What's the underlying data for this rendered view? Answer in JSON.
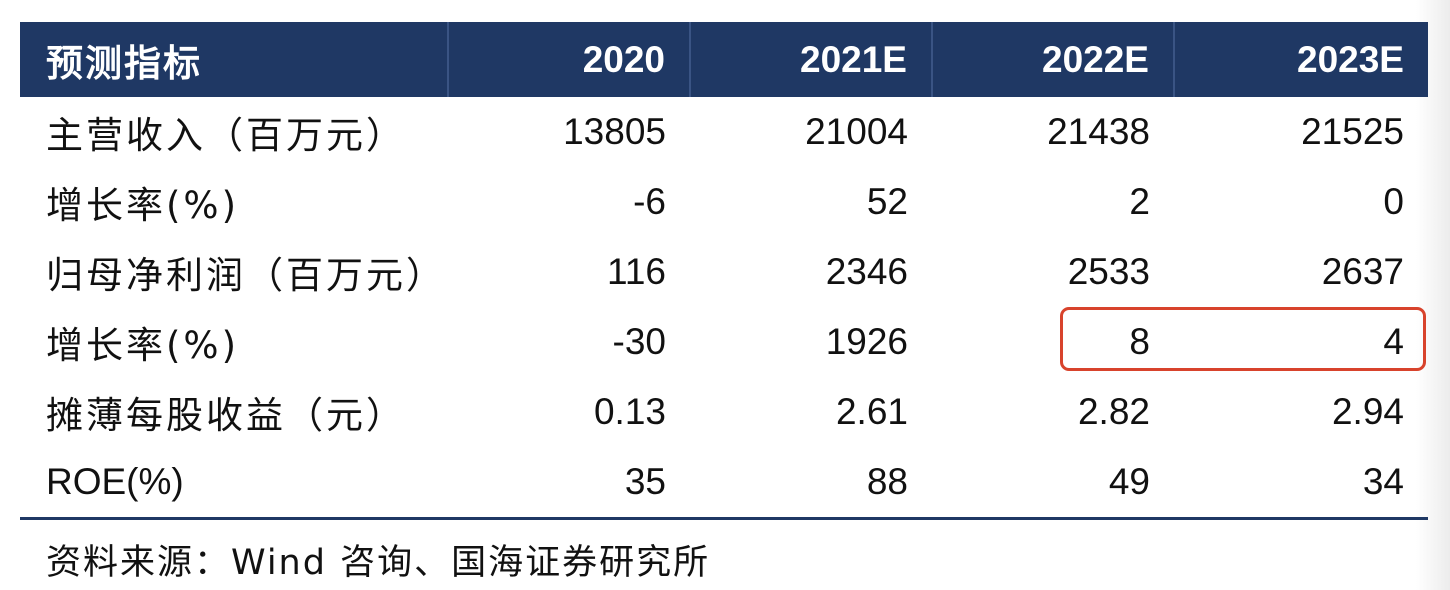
{
  "table": {
    "header": {
      "label": "预测指标",
      "years": [
        "2020",
        "2021E",
        "2022E",
        "2023E"
      ]
    },
    "rows": [
      {
        "label": "主营收入（百万元）",
        "values": [
          "13805",
          "21004",
          "21438",
          "21525"
        ]
      },
      {
        "label": "增长率(%)",
        "values": [
          "-6",
          "52",
          "2",
          "0"
        ]
      },
      {
        "label": "归母净利润（百万元）",
        "values": [
          "116",
          "2346",
          "2533",
          "2637"
        ]
      },
      {
        "label": "增长率(%)",
        "values": [
          "-30",
          "1926",
          "8",
          "4"
        ]
      },
      {
        "label": "摊薄每股收益（元）",
        "values": [
          "0.13",
          "2.61",
          "2.82",
          "2.94"
        ]
      },
      {
        "label": "ROE(%)",
        "values": [
          "35",
          "88",
          "49",
          "34"
        ]
      }
    ]
  },
  "source": "资料来源：Wind 咨询、国海证券研究所",
  "colors": {
    "header_bg": "#1f3864",
    "header_text": "#ffffff",
    "highlight_border": "#d8432c",
    "bottom_rule": "#1f3864"
  }
}
